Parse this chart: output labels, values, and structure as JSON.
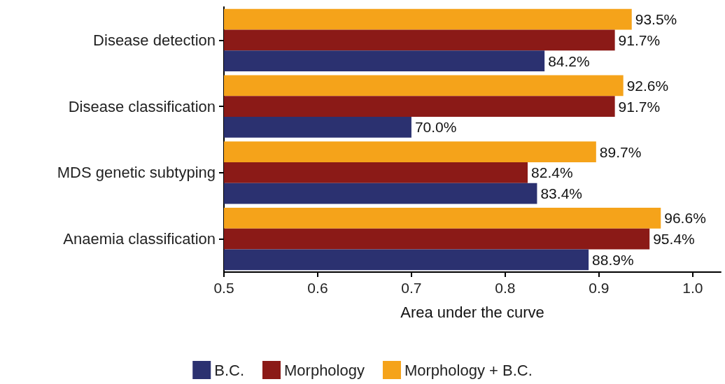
{
  "chart_data": {
    "type": "bar",
    "orientation": "horizontal",
    "xlabel": "Area under the curve",
    "categories": [
      "Disease detection",
      "Disease classification",
      "MDS genetic subtyping",
      "Anaemia classification"
    ],
    "series": [
      {
        "name": "B.C.",
        "color": "#2b3170",
        "values": [
          0.842,
          0.7,
          0.834,
          0.889
        ],
        "value_labels": [
          "84.2%",
          "70.0%",
          "83.4%",
          "88.9%"
        ]
      },
      {
        "name": "Morphology",
        "color": "#8b1a17",
        "values": [
          0.917,
          0.917,
          0.824,
          0.954
        ],
        "value_labels": [
          "91.7%",
          "91.7%",
          "82.4%",
          "95.4%"
        ]
      },
      {
        "name": "Morphology + B.C.",
        "color": "#f5a31a",
        "values": [
          0.935,
          0.926,
          0.897,
          0.966
        ],
        "value_labels": [
          "93.5%",
          "92.6%",
          "89.7%",
          "96.6%"
        ]
      }
    ],
    "xlim": [
      0.5,
      1.03
    ],
    "xticks": [
      0.5,
      0.6,
      0.7,
      0.8,
      0.9,
      {
        "value": 1,
        "label": "1.0"
      }
    ],
    "grid": false,
    "legend": "bottom"
  }
}
